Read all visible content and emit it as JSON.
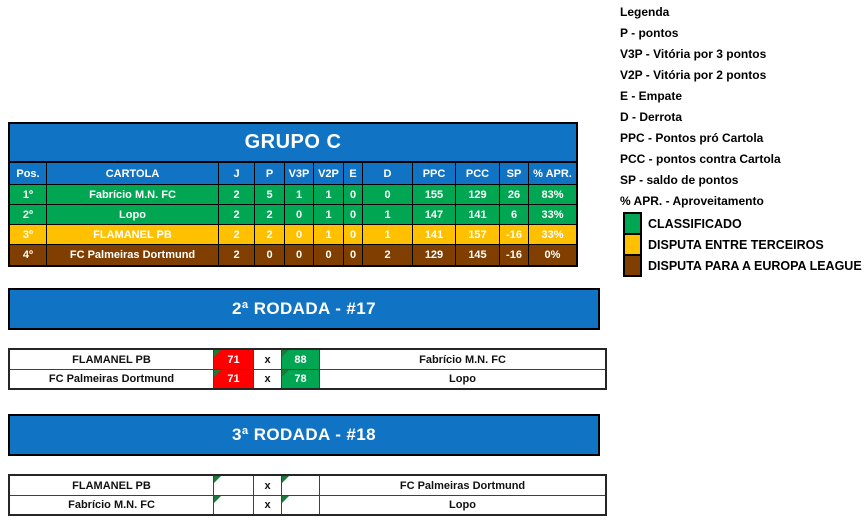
{
  "legend": {
    "title": "Legenda",
    "items": [
      "P - pontos",
      "V3P - Vitória por 3 pontos",
      "V2P - Vitória por 2 pontos",
      "E - Empate",
      "D - Derrota",
      "PPC - Pontos pró Cartola",
      "PCC - pontos contra Cartola",
      "SP - saldo de pontos",
      "% APR. - Aproveitamento"
    ],
    "classes": [
      {
        "label": "CLASSIFICADO",
        "color": "#00A651"
      },
      {
        "label": "DISPUTA ENTRE TERCEIROS",
        "color": "#FFC000"
      },
      {
        "label": "DISPUTA PARA A EUROPA LEAGUE",
        "color": "#803F00"
      }
    ]
  },
  "group_table": {
    "title": "GRUPO C",
    "columns": [
      "Pos.",
      "CARTOLA",
      "J",
      "P",
      "V3P",
      "V2P",
      "E",
      "D",
      "PPC",
      "PCC",
      "SP",
      "% APR."
    ],
    "rows": [
      {
        "pos": "1º",
        "cartola": "Fabrício M.N. FC",
        "j": "2",
        "p": "5",
        "v3p": "1",
        "v2p": "1",
        "e": "0",
        "d": "0",
        "ppc": "155",
        "pcc": "129",
        "sp": "26",
        "apr": "83%",
        "status": "classificado"
      },
      {
        "pos": "2º",
        "cartola": "Lopo",
        "j": "2",
        "p": "2",
        "v3p": "0",
        "v2p": "1",
        "e": "0",
        "d": "1",
        "ppc": "147",
        "pcc": "141",
        "sp": "6",
        "apr": "33%",
        "status": "classificado"
      },
      {
        "pos": "3º",
        "cartola": "FLAMANEL PB",
        "j": "2",
        "p": "2",
        "v3p": "0",
        "v2p": "1",
        "e": "0",
        "d": "1",
        "ppc": "141",
        "pcc": "157",
        "sp": "-16",
        "apr": "33%",
        "status": "terceiros"
      },
      {
        "pos": "4º",
        "cartola": "FC Palmeiras Dortmund",
        "j": "2",
        "p": "0",
        "v3p": "0",
        "v2p": "0",
        "e": "0",
        "d": "2",
        "ppc": "129",
        "pcc": "145",
        "sp": "-16",
        "apr": "0%",
        "status": "europa"
      }
    ]
  },
  "rounds": [
    {
      "title": "2ª RODADA - #17",
      "matches": [
        {
          "home": "FLAMANEL PB",
          "home_score": "71",
          "home_result": "loss",
          "separator": "x",
          "away_score": "88",
          "away_result": "win",
          "away": "Fabrício M.N. FC"
        },
        {
          "home": "FC Palmeiras Dortmund",
          "home_score": "71",
          "home_result": "loss",
          "separator": "x",
          "away_score": "78",
          "away_result": "win",
          "away": "Lopo"
        }
      ]
    },
    {
      "title": "3ª RODADA - #18",
      "matches": [
        {
          "home": "FLAMANEL PB",
          "home_score": "",
          "home_result": "pending",
          "separator": "x",
          "away_score": "",
          "away_result": "pending",
          "away": "FC Palmeiras Dortmund"
        },
        {
          "home": "Fabrício M.N. FC",
          "home_score": "",
          "home_result": "pending",
          "separator": "x",
          "away_score": "",
          "away_result": "pending",
          "away": "Lopo"
        }
      ]
    }
  ],
  "colors": {
    "header_blue": "#1173C4",
    "classified_green": "#00A651",
    "third_place_yellow": "#FFC000",
    "europa_brown": "#803F00",
    "loss_red": "#FF0000",
    "win_green": "#00A651",
    "corner_indicator_green": "#1B7A3A"
  }
}
